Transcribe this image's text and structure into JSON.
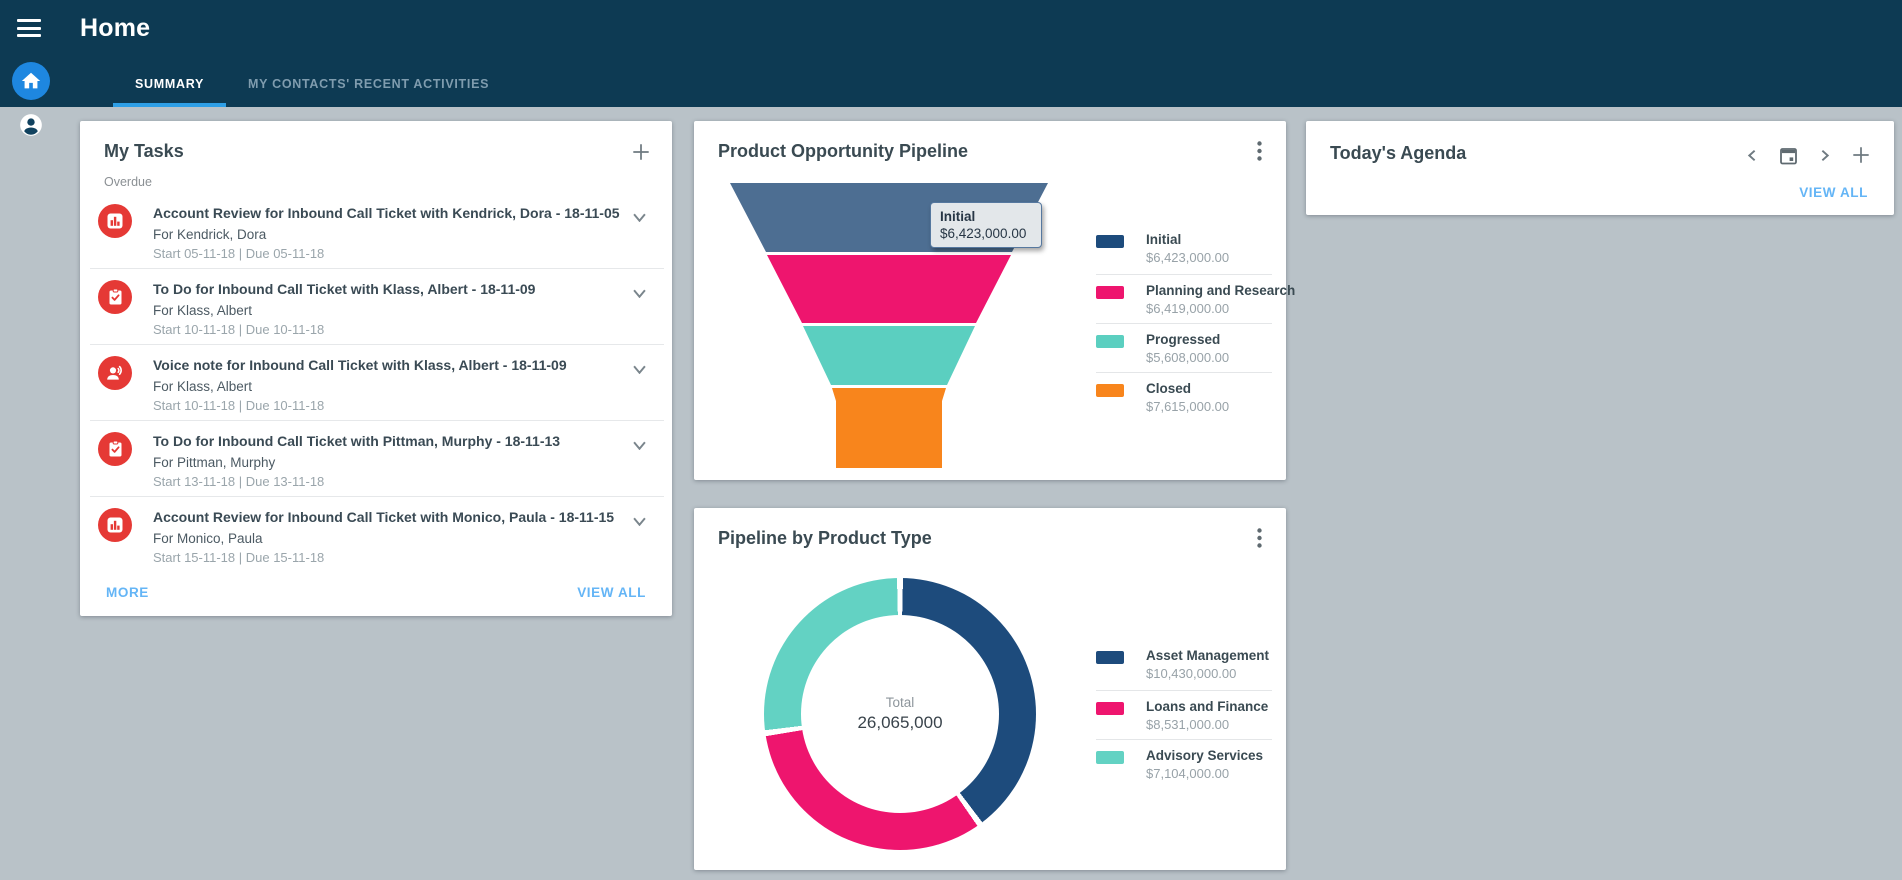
{
  "app": {
    "title": "Home"
  },
  "tabs": [
    {
      "label": "SUMMARY",
      "active": true
    },
    {
      "label": "MY CONTACTS' RECENT ACTIVITIES",
      "active": false
    }
  ],
  "sidebar": {
    "icons": [
      "menu-icon",
      "home-icon",
      "account-icon"
    ]
  },
  "colors": {
    "header_bg": "#0d3a53",
    "content_bg": "#b9c2c8",
    "accent_blue": "#2e9fe6",
    "link_blue": "#64b5f6",
    "home_button_blue": "#1e87e0",
    "task_icon_red": "#e53935"
  },
  "my_tasks": {
    "title": "My Tasks",
    "group_label": "Overdue",
    "more_label": "MORE",
    "view_all_label": "VIEW ALL",
    "tasks": [
      {
        "icon": "bar-chart",
        "title": "Account Review for Inbound Call Ticket with Kendrick, Dora - 18-11-05",
        "assignee": "For Kendrick, Dora",
        "dates": "Start 05-11-18 | Due 05-11-18"
      },
      {
        "icon": "clipboard-check",
        "title": "To Do for Inbound Call Ticket with Klass, Albert - 18-11-09",
        "assignee": "For Klass, Albert",
        "dates": "Start 10-11-18 | Due 10-11-18"
      },
      {
        "icon": "voice-note",
        "title": "Voice note for Inbound Call Ticket with Klass, Albert - 18-11-09",
        "assignee": "For Klass, Albert",
        "dates": "Start 10-11-18 | Due 10-11-18"
      },
      {
        "icon": "clipboard-check",
        "title": "To Do for Inbound Call Ticket with Pittman, Murphy - 18-11-13",
        "assignee": "For Pittman, Murphy",
        "dates": "Start 13-11-18 | Due 13-11-18"
      },
      {
        "icon": "bar-chart",
        "title": "Account Review for Inbound Call Ticket with Monico, Paula - 18-11-15",
        "assignee": "For Monico, Paula",
        "dates": "Start 15-11-18 | Due 15-11-18"
      }
    ]
  },
  "agenda": {
    "title": "Today's Agenda",
    "view_all_label": "VIEW ALL",
    "header_icons": [
      "chevron-left-icon",
      "calendar-icon",
      "chevron-right-icon",
      "plus-icon"
    ]
  },
  "chart_data": [
    {
      "type": "funnel",
      "title": "Product Opportunity Pipeline",
      "legend_position": "right",
      "series": [
        {
          "label": "Initial",
          "value": 6423000,
          "display": "$6,423,000.00",
          "color": "#1d4b7c",
          "segment_color": "#4d6e92"
        },
        {
          "label": "Planning and Research",
          "value": 6419000,
          "display": "$6,419,000.00",
          "color": "#ee156e",
          "segment_color": "#ee156e"
        },
        {
          "label": "Progressed",
          "value": 5608000,
          "display": "$5,608,000.00",
          "color": "#5bcfc0",
          "segment_color": "#5bcfc0"
        },
        {
          "label": "Closed",
          "value": 7615000,
          "display": "$7,615,000.00",
          "color": "#f8851c",
          "segment_color": "#f8851c"
        }
      ],
      "tooltip": {
        "label": "Initial",
        "value_display": "$6,423,000.00"
      }
    },
    {
      "type": "donut",
      "title": "Pipeline by Product Type",
      "legend_position": "right",
      "center_label": "Total",
      "center_value_display": "26,065,000",
      "total": 26065000,
      "series": [
        {
          "label": "Asset Management",
          "value": 10430000,
          "display": "$10,430,000.00",
          "color": "#1d4b7c"
        },
        {
          "label": "Loans and Finance",
          "value": 8531000,
          "display": "$8,531,000.00",
          "color": "#ee156e"
        },
        {
          "label": "Advisory Services",
          "value": 7104000,
          "display": "$7,104,000.00",
          "color": "#63d2c3"
        }
      ]
    }
  ]
}
